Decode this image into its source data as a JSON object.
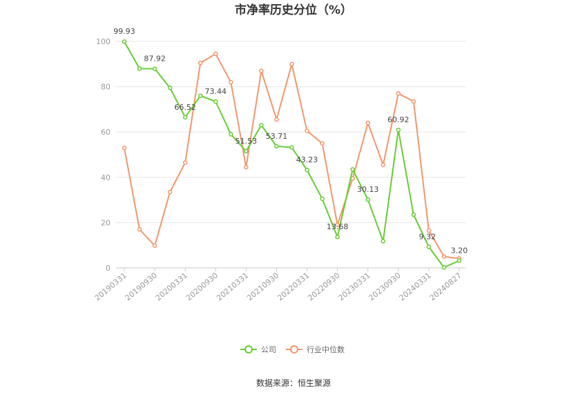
{
  "title": "市净率历史分位（%）",
  "source": "数据来源：恒生聚源",
  "colors": {
    "company": "#66cc33",
    "industry": "#f4956b",
    "grid": "#e6e6e6",
    "axis": "#c8c8c8"
  },
  "chart_data": {
    "type": "line",
    "title": "市净率历史分位（%）",
    "xlabel": "",
    "ylabel": "",
    "ylim": [
      0,
      100
    ],
    "yticks": [
      0,
      20,
      40,
      60,
      80,
      100
    ],
    "grid": true,
    "legend_position": "bottom",
    "x": [
      "20190331",
      "20190630",
      "20190930",
      "20191231",
      "20200331",
      "20200630",
      "20200930",
      "20201231",
      "20210331",
      "20210630",
      "20210930",
      "20211231",
      "20220331",
      "20220630",
      "20220930",
      "20221231",
      "20230331",
      "20230630",
      "20230930",
      "20231231",
      "20240331",
      "20240630",
      "20240827"
    ],
    "x_tick_labels": [
      "20190331",
      "20190930",
      "20200331",
      "20200930",
      "20210331",
      "20210930",
      "20220331",
      "20220930",
      "20230331",
      "20230930",
      "20240331",
      "20240827"
    ],
    "series": [
      {
        "name": "公司",
        "color": "#66cc33",
        "values": [
          99.93,
          88.0,
          87.92,
          79.5,
          66.52,
          76.0,
          73.44,
          59.0,
          51.53,
          63.0,
          53.71,
          53.2,
          43.23,
          30.5,
          13.68,
          43.5,
          30.13,
          11.8,
          60.92,
          23.5,
          9.32,
          0.2,
          3.2
        ],
        "labels": {
          "0": "99.93",
          "2": "87.92",
          "4": "66.52",
          "6": "73.44",
          "8": "51.53",
          "10": "53.71",
          "12": "43.23",
          "14": "13.68",
          "16": "30.13",
          "18": "60.92",
          "20": "9.32",
          "22": "3.20"
        }
      },
      {
        "name": "行业中位数",
        "color": "#f4956b",
        "values": [
          53.0,
          17.0,
          9.8,
          33.5,
          46.5,
          90.5,
          94.5,
          82.0,
          44.5,
          87.0,
          65.5,
          90.0,
          60.5,
          55.0,
          19.0,
          39.5,
          64.0,
          45.5,
          77.0,
          73.5,
          16.5,
          5.0,
          4.2
        ]
      }
    ]
  }
}
